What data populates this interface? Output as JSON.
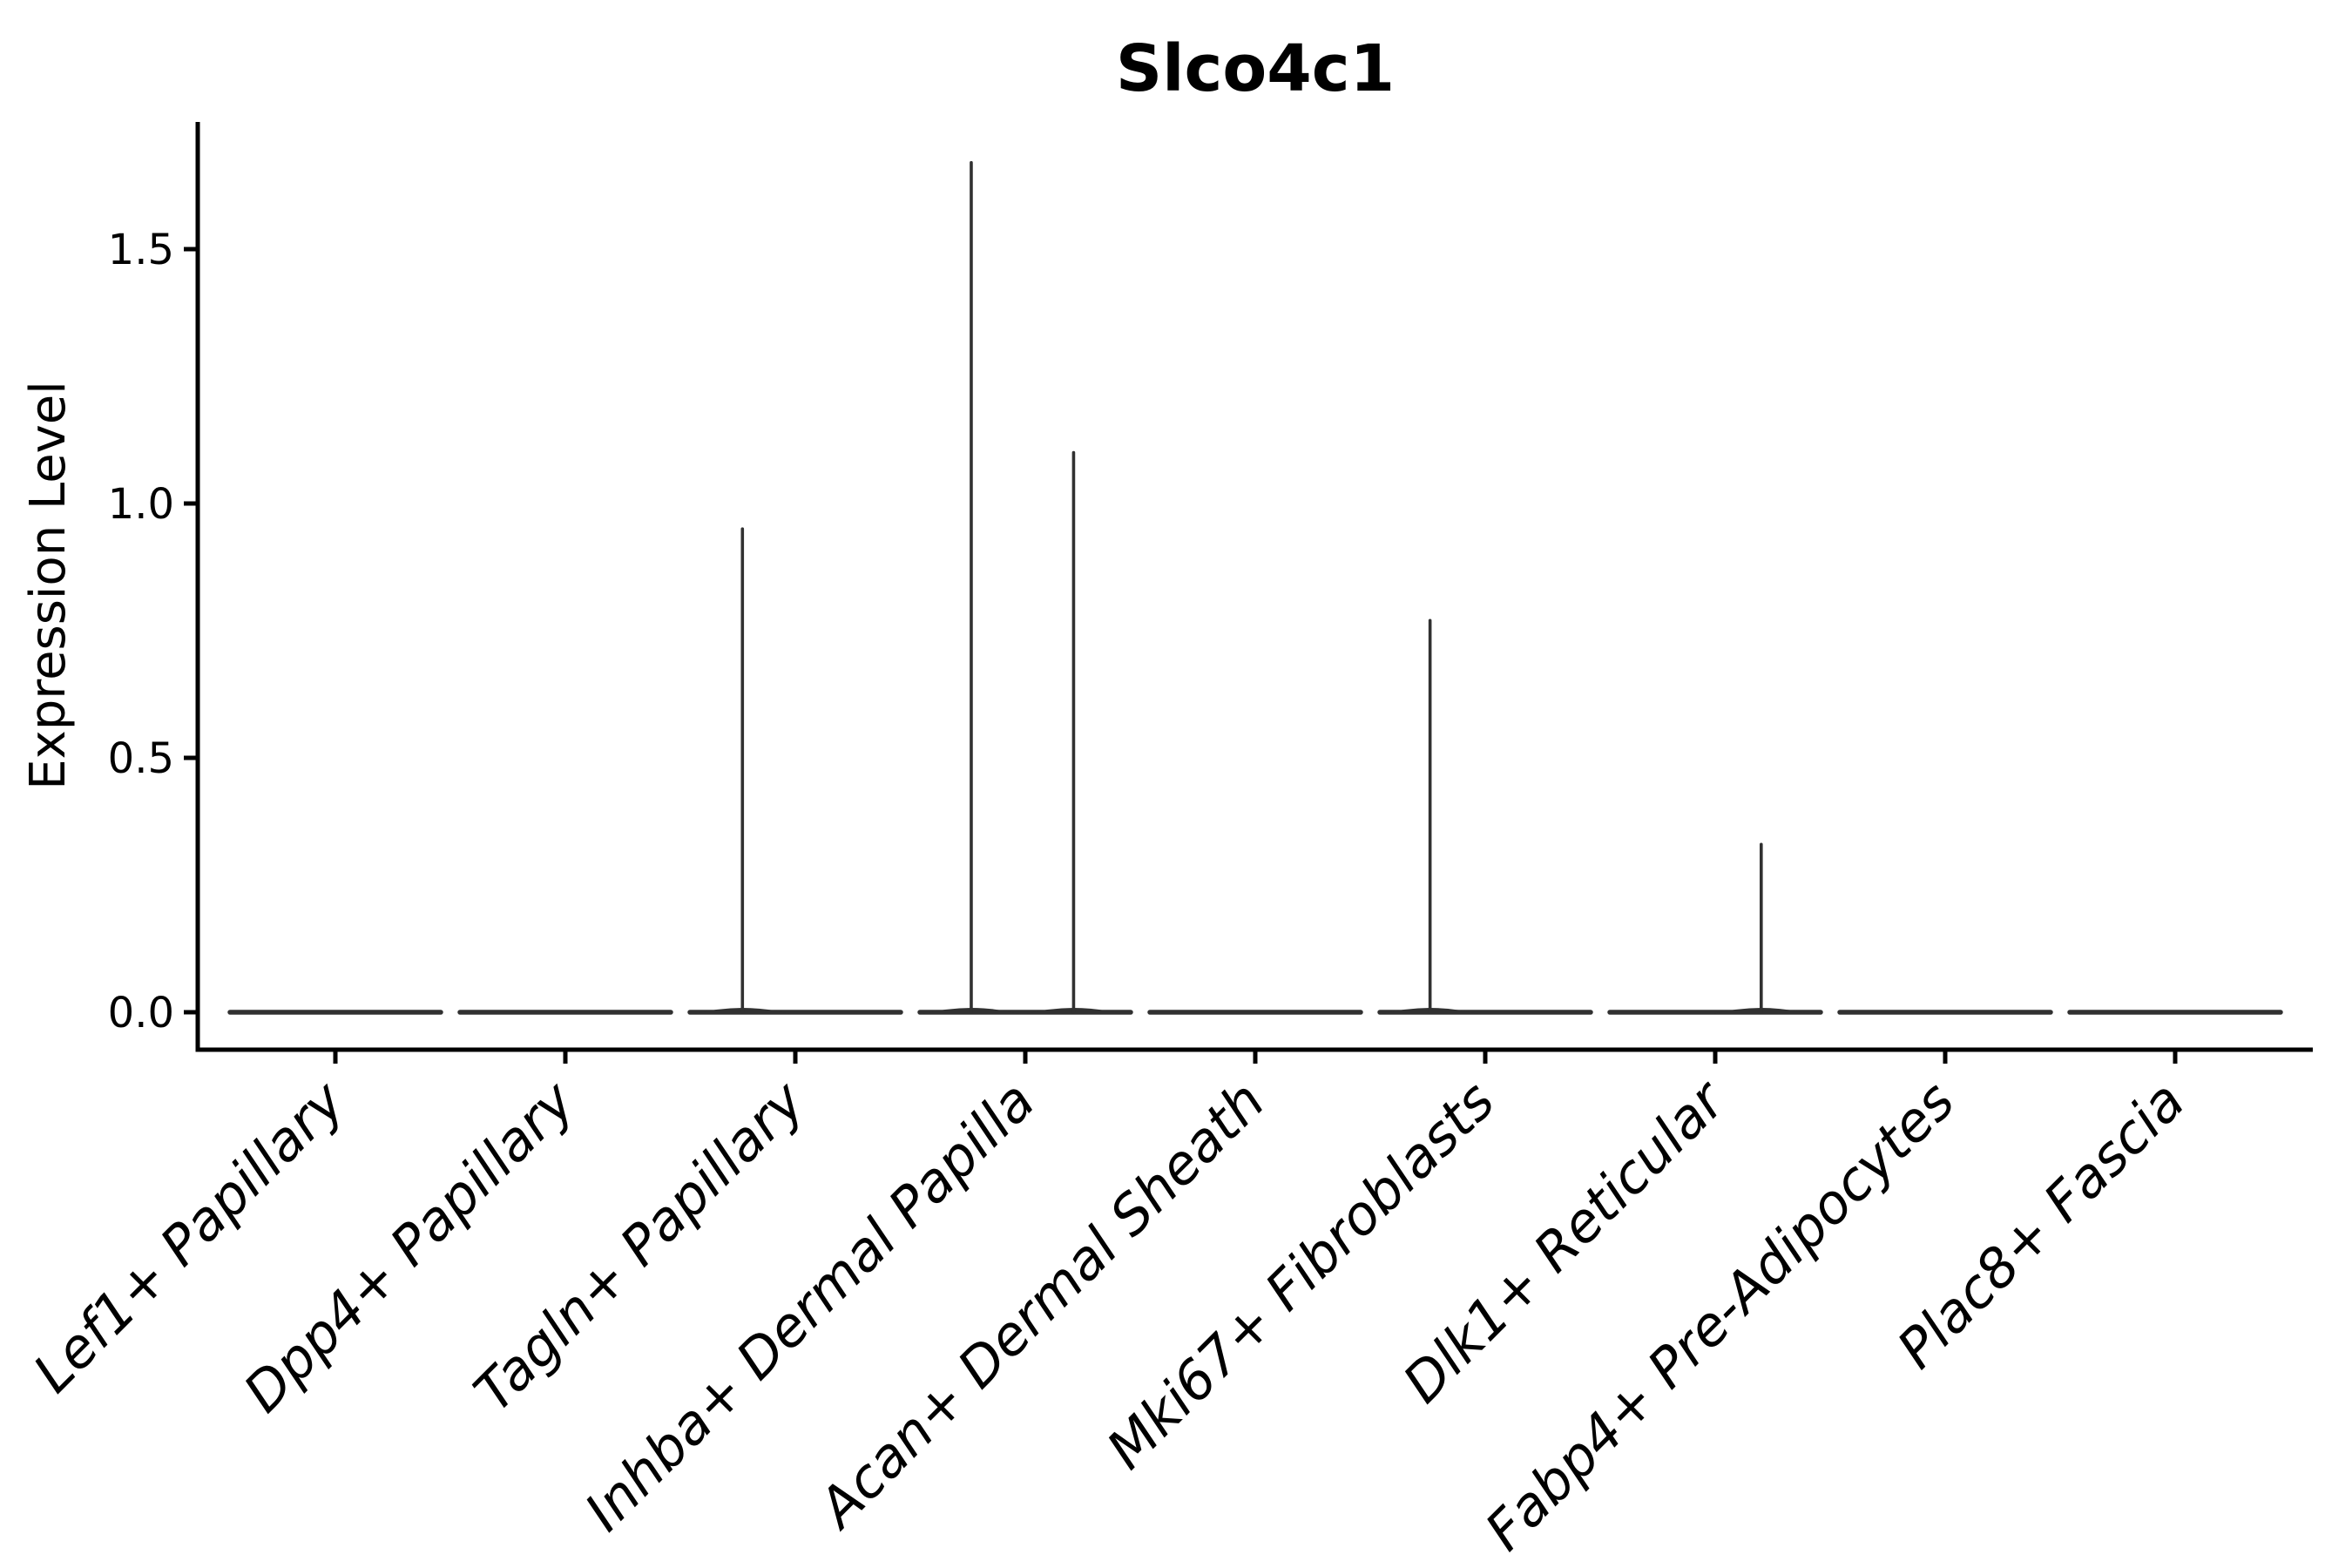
{
  "chart_data": {
    "type": "violin",
    "title": "Slco4c1",
    "ylabel": "Expression Level",
    "xlabel": "",
    "grid": false,
    "legend": "none",
    "ylim": [
      -0.07,
      1.75
    ],
    "yticks": [
      "0.0",
      "0.5",
      "1.0",
      "1.5"
    ],
    "ytick_values": [
      0.0,
      0.5,
      1.0,
      1.5
    ],
    "categories": [
      "Lef1+ Papillary",
      "Dpp4+ Papillary",
      "Tagln+ Papillary",
      "Inhba+ Dermal Papilla",
      "Acan+ Dermal Sheath",
      "Mki67+ Fibroblasts",
      "Dlk1+ Reticular",
      "Fabp4+ Pre-Adipocytes",
      "Plac8+ Fascia"
    ],
    "violins": [
      {
        "category": "Lef1+ Papillary",
        "baseline_value": 0.0,
        "spikes": []
      },
      {
        "category": "Dpp4+ Papillary",
        "baseline_value": 0.0,
        "spikes": []
      },
      {
        "category": "Tagln+ Papillary",
        "baseline_value": 0.0,
        "spikes": [
          {
            "offset_frac": -0.23,
            "max_expression": 0.95
          }
        ]
      },
      {
        "category": "Inhba+ Dermal Papilla",
        "baseline_value": 0.0,
        "spikes": [
          {
            "offset_frac": -0.235,
            "max_expression": 1.67
          },
          {
            "offset_frac": 0.21,
            "max_expression": 1.1
          }
        ]
      },
      {
        "category": "Acan+ Dermal Sheath",
        "baseline_value": 0.0,
        "spikes": []
      },
      {
        "category": "Mki67+ Fibroblasts",
        "baseline_value": 0.0,
        "spikes": [
          {
            "offset_frac": -0.24,
            "max_expression": 0.77
          }
        ]
      },
      {
        "category": "Dlk1+ Reticular",
        "baseline_value": 0.0,
        "spikes": [
          {
            "offset_frac": 0.2,
            "max_expression": 0.33
          }
        ]
      },
      {
        "category": "Fabp4+ Pre-Adipocytes",
        "baseline_value": 0.0,
        "spikes": []
      },
      {
        "category": "Plac8+ Fascia",
        "baseline_value": 0.0,
        "spikes": []
      }
    ],
    "colors": {
      "background": "#ffffff",
      "axis_ink": "#000000",
      "violin_stroke": "#313131"
    }
  }
}
